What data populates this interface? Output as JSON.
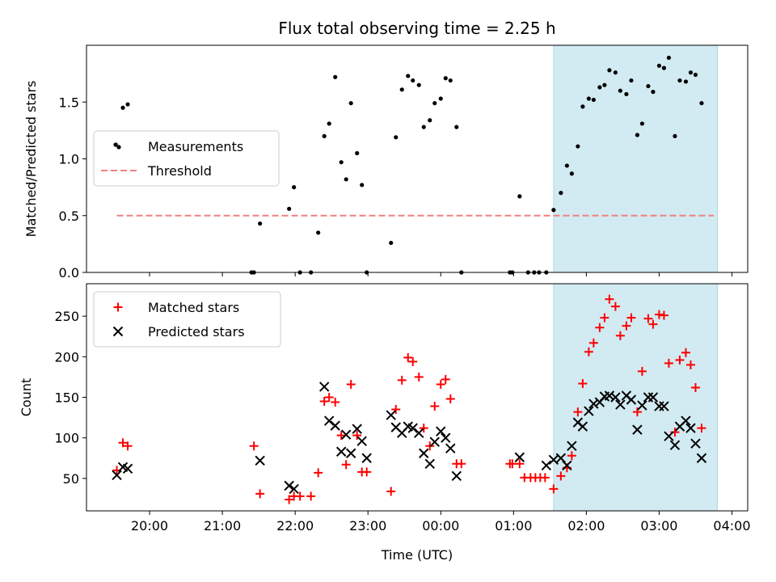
{
  "chart_data": {
    "title": "Flux total observing time = 2.25 h",
    "xlabel": "Time (UTC)",
    "x_ticks": [
      "20:00",
      "21:00",
      "22:00",
      "23:00",
      "00:00",
      "01:00",
      "02:00",
      "03:00",
      "04:00"
    ],
    "x_tick_minutes": [
      1200,
      1260,
      1320,
      1380,
      1440,
      1500,
      1560,
      1620,
      1680
    ],
    "x_range_minutes": [
      1148,
      1693
    ],
    "highlight_span_minutes": [
      1533,
      1668
    ],
    "highlight_color": "#add8e6",
    "panels": [
      {
        "type": "scatter",
        "ylabel": "Matched/Predicted stars",
        "ylim": [
          0,
          2.0
        ],
        "y_ticks": [
          0.0,
          0.5,
          1.0,
          1.5
        ],
        "y_tick_labels": [
          "0.0",
          "0.5",
          "1.0",
          "1.5"
        ],
        "legend": {
          "position": "center-left",
          "entries": [
            "Measurements",
            "Threshold"
          ]
        },
        "threshold": {
          "name": "Threshold",
          "y": 0.5,
          "x_start": 1173,
          "x_end": 1665,
          "color": "#f08080",
          "style": "dashed"
        },
        "series": [
          {
            "name": "Measurements",
            "marker": "dot",
            "color": "#000000",
            "points": [
              [
                1173,
                1.13
              ],
              [
                1174,
                1.11
              ],
              [
                1178,
                1.45
              ],
              [
                1182,
                1.48
              ],
              [
                1284,
                0.0
              ],
              [
                1286,
                0.0
              ],
              [
                1291,
                0.43
              ],
              [
                1315,
                0.56
              ],
              [
                1319,
                0.75
              ],
              [
                1324,
                0.0
              ],
              [
                1333,
                0.0
              ],
              [
                1339,
                0.35
              ],
              [
                1344,
                1.2
              ],
              [
                1348,
                1.31
              ],
              [
                1353,
                1.72
              ],
              [
                1358,
                0.97
              ],
              [
                1362,
                0.82
              ],
              [
                1366,
                1.49
              ],
              [
                1371,
                1.05
              ],
              [
                1375,
                0.77
              ],
              [
                1379,
                0.0
              ],
              [
                1399,
                0.26
              ],
              [
                1403,
                1.19
              ],
              [
                1408,
                1.61
              ],
              [
                1413,
                1.73
              ],
              [
                1417,
                1.69
              ],
              [
                1422,
                1.65
              ],
              [
                1426,
                1.28
              ],
              [
                1431,
                1.34
              ],
              [
                1435,
                1.49
              ],
              [
                1440,
                1.53
              ],
              [
                1444,
                1.71
              ],
              [
                1448,
                1.69
              ],
              [
                1453,
                1.28
              ],
              [
                1457,
                0.0
              ],
              [
                1497,
                0.0
              ],
              [
                1499,
                0.0
              ],
              [
                1505,
                0.67
              ],
              [
                1512,
                0.0
              ],
              [
                1517,
                0.0
              ],
              [
                1521,
                0.0
              ],
              [
                1527,
                0.0
              ],
              [
                1533,
                0.55
              ],
              [
                1539,
                0.7
              ],
              [
                1544,
                0.94
              ],
              [
                1548,
                0.87
              ],
              [
                1553,
                1.11
              ],
              [
                1557,
                1.46
              ],
              [
                1562,
                1.53
              ],
              [
                1566,
                1.52
              ],
              [
                1571,
                1.63
              ],
              [
                1575,
                1.65
              ],
              [
                1579,
                1.78
              ],
              [
                1584,
                1.76
              ],
              [
                1588,
                1.6
              ],
              [
                1593,
                1.57
              ],
              [
                1597,
                1.69
              ],
              [
                1602,
                1.21
              ],
              [
                1606,
                1.31
              ],
              [
                1611,
                1.64
              ],
              [
                1615,
                1.59
              ],
              [
                1620,
                1.82
              ],
              [
                1624,
                1.8
              ],
              [
                1628,
                1.89
              ],
              [
                1633,
                1.2
              ],
              [
                1637,
                1.69
              ],
              [
                1642,
                1.68
              ],
              [
                1646,
                1.76
              ],
              [
                1650,
                1.74
              ],
              [
                1655,
                1.49
              ]
            ]
          }
        ]
      },
      {
        "type": "scatter",
        "ylabel": "Count",
        "ylim": [
          10,
          290
        ],
        "y_ticks": [
          50,
          100,
          150,
          200,
          250
        ],
        "y_tick_labels": [
          "50",
          "100",
          "150",
          "200",
          "250"
        ],
        "legend": {
          "position": "top-left",
          "entries": [
            "Matched stars",
            "Predicted stars"
          ]
        },
        "series": [
          {
            "name": "Matched stars",
            "marker": "plus",
            "color": "#ff0000",
            "points": [
              [
                1173,
                60
              ],
              [
                1178,
                94
              ],
              [
                1182,
                90
              ],
              [
                1286,
                90
              ],
              [
                1291,
                31
              ],
              [
                1315,
                24
              ],
              [
                1319,
                28
              ],
              [
                1324,
                28
              ],
              [
                1333,
                28
              ],
              [
                1339,
                57
              ],
              [
                1344,
                145
              ],
              [
                1348,
                150
              ],
              [
                1353,
                144
              ],
              [
                1358,
                103
              ],
              [
                1362,
                67
              ],
              [
                1366,
                166
              ],
              [
                1371,
                103
              ],
              [
                1375,
                58
              ],
              [
                1379,
                58
              ],
              [
                1399,
                34
              ],
              [
                1403,
                135
              ],
              [
                1408,
                171
              ],
              [
                1413,
                199
              ],
              [
                1417,
                194
              ],
              [
                1422,
                175
              ],
              [
                1426,
                112
              ],
              [
                1431,
                90
              ],
              [
                1435,
                139
              ],
              [
                1440,
                166
              ],
              [
                1444,
                172
              ],
              [
                1448,
                148
              ],
              [
                1453,
                68
              ],
              [
                1457,
                68
              ],
              [
                1497,
                68
              ],
              [
                1499,
                68
              ],
              [
                1505,
                68
              ],
              [
                1509,
                51
              ],
              [
                1514,
                51
              ],
              [
                1518,
                51
              ],
              [
                1522,
                51
              ],
              [
                1526,
                51
              ],
              [
                1533,
                37
              ],
              [
                1539,
                53
              ],
              [
                1544,
                63
              ],
              [
                1548,
                78
              ],
              [
                1553,
                132
              ],
              [
                1557,
                167
              ],
              [
                1562,
                206
              ],
              [
                1566,
                217
              ],
              [
                1571,
                236
              ],
              [
                1575,
                248
              ],
              [
                1579,
                271
              ],
              [
                1584,
                262
              ],
              [
                1588,
                226
              ],
              [
                1593,
                238
              ],
              [
                1597,
                248
              ],
              [
                1602,
                132
              ],
              [
                1606,
                182
              ],
              [
                1611,
                247
              ],
              [
                1615,
                240
              ],
              [
                1620,
                252
              ],
              [
                1624,
                251
              ],
              [
                1628,
                192
              ],
              [
                1633,
                107
              ],
              [
                1637,
                196
              ],
              [
                1642,
                205
              ],
              [
                1646,
                190
              ],
              [
                1650,
                162
              ],
              [
                1655,
                112
              ]
            ]
          },
          {
            "name": "Predicted stars",
            "marker": "x",
            "color": "#000000",
            "points": [
              [
                1173,
                54
              ],
              [
                1178,
                64
              ],
              [
                1182,
                62
              ],
              [
                1291,
                72
              ],
              [
                1315,
                41
              ],
              [
                1319,
                37
              ],
              [
                1344,
                163
              ],
              [
                1348,
                121
              ],
              [
                1353,
                115
              ],
              [
                1358,
                83
              ],
              [
                1362,
                104
              ],
              [
                1366,
                81
              ],
              [
                1371,
                111
              ],
              [
                1375,
                96
              ],
              [
                1379,
                75
              ],
              [
                1399,
                128
              ],
              [
                1403,
                113
              ],
              [
                1408,
                106
              ],
              [
                1413,
                114
              ],
              [
                1417,
                112
              ],
              [
                1422,
                106
              ],
              [
                1426,
                81
              ],
              [
                1431,
                68
              ],
              [
                1435,
                95
              ],
              [
                1440,
                108
              ],
              [
                1444,
                100
              ],
              [
                1448,
                87
              ],
              [
                1453,
                53
              ],
              [
                1505,
                76
              ],
              [
                1527,
                66
              ],
              [
                1533,
                73
              ],
              [
                1539,
                75
              ],
              [
                1544,
                66
              ],
              [
                1548,
                90
              ],
              [
                1553,
                119
              ],
              [
                1557,
                114
              ],
              [
                1562,
                133
              ],
              [
                1566,
                142
              ],
              [
                1571,
                144
              ],
              [
                1575,
                151
              ],
              [
                1579,
                152
              ],
              [
                1584,
                150
              ],
              [
                1588,
                141
              ],
              [
                1593,
                152
              ],
              [
                1597,
                147
              ],
              [
                1602,
                110
              ],
              [
                1606,
                140
              ],
              [
                1611,
                150
              ],
              [
                1615,
                150
              ],
              [
                1620,
                139
              ],
              [
                1624,
                139
              ],
              [
                1628,
                102
              ],
              [
                1633,
                91
              ],
              [
                1637,
                114
              ],
              [
                1642,
                121
              ],
              [
                1646,
                112
              ],
              [
                1650,
                93
              ],
              [
                1655,
                75
              ]
            ]
          }
        ]
      }
    ]
  }
}
